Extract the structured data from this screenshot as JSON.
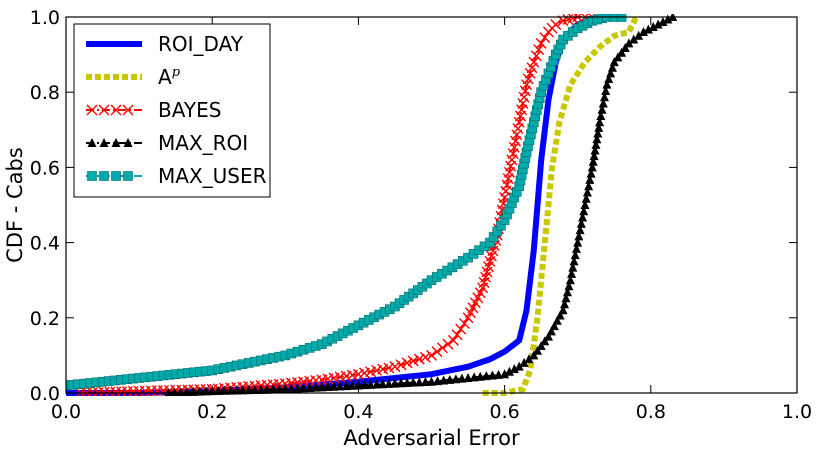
{
  "chart_data": {
    "type": "line",
    "xlabel": "Adversarial Error",
    "ylabel": "CDF - Cabs",
    "xlim": [
      0.0,
      1.0
    ],
    "ylim": [
      0.0,
      1.0
    ],
    "x_ticks": [
      "0.0",
      "0.2",
      "0.4",
      "0.6",
      "0.8",
      "1.0"
    ],
    "y_ticks": [
      "0.0",
      "0.2",
      "0.4",
      "0.6",
      "0.8",
      "1.0"
    ],
    "grid": false,
    "legend_position": "top-left",
    "series": [
      {
        "name": "ROI_DAY",
        "color": "#0000ff",
        "style": "solid",
        "marker": "none",
        "x": [
          0.0,
          0.1,
          0.2,
          0.3,
          0.4,
          0.45,
          0.5,
          0.55,
          0.58,
          0.6,
          0.62,
          0.63,
          0.64,
          0.65,
          0.66,
          0.67,
          0.68,
          0.7,
          0.72,
          0.74,
          0.76
        ],
        "y": [
          0.0,
          0.0,
          0.005,
          0.015,
          0.03,
          0.04,
          0.05,
          0.07,
          0.09,
          0.11,
          0.14,
          0.22,
          0.38,
          0.62,
          0.78,
          0.88,
          0.94,
          0.98,
          0.995,
          1.0,
          1.0
        ]
      },
      {
        "name": "A^p",
        "color": "#c8c800",
        "style": "dashed",
        "marker": "none",
        "x": [
          0.57,
          0.6,
          0.625,
          0.635,
          0.645,
          0.655,
          0.665,
          0.675,
          0.69,
          0.71,
          0.73,
          0.75,
          0.77,
          0.78
        ],
        "y": [
          0.0,
          0.0,
          0.01,
          0.06,
          0.2,
          0.4,
          0.6,
          0.72,
          0.82,
          0.88,
          0.92,
          0.95,
          0.96,
          1.0
        ]
      },
      {
        "name": "BAYES",
        "color": "#ff0000",
        "style": "dashdot",
        "marker": "x",
        "x": [
          0.02,
          0.1,
          0.2,
          0.3,
          0.35,
          0.4,
          0.45,
          0.5,
          0.53,
          0.55,
          0.57,
          0.58,
          0.59,
          0.6,
          0.61,
          0.62,
          0.63,
          0.64,
          0.65,
          0.66,
          0.67,
          0.68,
          0.7,
          0.72
        ],
        "y": [
          0.0,
          0.005,
          0.01,
          0.025,
          0.035,
          0.05,
          0.07,
          0.1,
          0.14,
          0.2,
          0.28,
          0.35,
          0.42,
          0.52,
          0.62,
          0.72,
          0.82,
          0.88,
          0.93,
          0.96,
          0.98,
          0.99,
          1.0,
          1.0
        ]
      },
      {
        "name": "MAX_ROI",
        "color": "#000000",
        "style": "dashdot",
        "marker": "triangle",
        "x": [
          0.14,
          0.2,
          0.3,
          0.4,
          0.5,
          0.55,
          0.6,
          0.62,
          0.64,
          0.66,
          0.68,
          0.69,
          0.7,
          0.71,
          0.72,
          0.73,
          0.74,
          0.75,
          0.77,
          0.79,
          0.81,
          0.83
        ],
        "y": [
          0.0,
          0.005,
          0.01,
          0.02,
          0.03,
          0.04,
          0.05,
          0.07,
          0.1,
          0.15,
          0.22,
          0.3,
          0.4,
          0.5,
          0.6,
          0.72,
          0.82,
          0.88,
          0.93,
          0.96,
          0.98,
          1.0
        ]
      },
      {
        "name": "MAX_USER",
        "color": "#00aaaa",
        "style": "dashdot",
        "marker": "square",
        "x": [
          0.0,
          0.05,
          0.1,
          0.2,
          0.25,
          0.3,
          0.35,
          0.4,
          0.45,
          0.5,
          0.55,
          0.58,
          0.6,
          0.62,
          0.63,
          0.64,
          0.65,
          0.66,
          0.67,
          0.68,
          0.7,
          0.72,
          0.74,
          0.76
        ],
        "y": [
          0.02,
          0.03,
          0.04,
          0.06,
          0.08,
          0.1,
          0.13,
          0.18,
          0.23,
          0.3,
          0.36,
          0.4,
          0.46,
          0.55,
          0.64,
          0.72,
          0.8,
          0.85,
          0.9,
          0.94,
          0.97,
          0.99,
          1.0,
          1.0
        ]
      }
    ]
  }
}
